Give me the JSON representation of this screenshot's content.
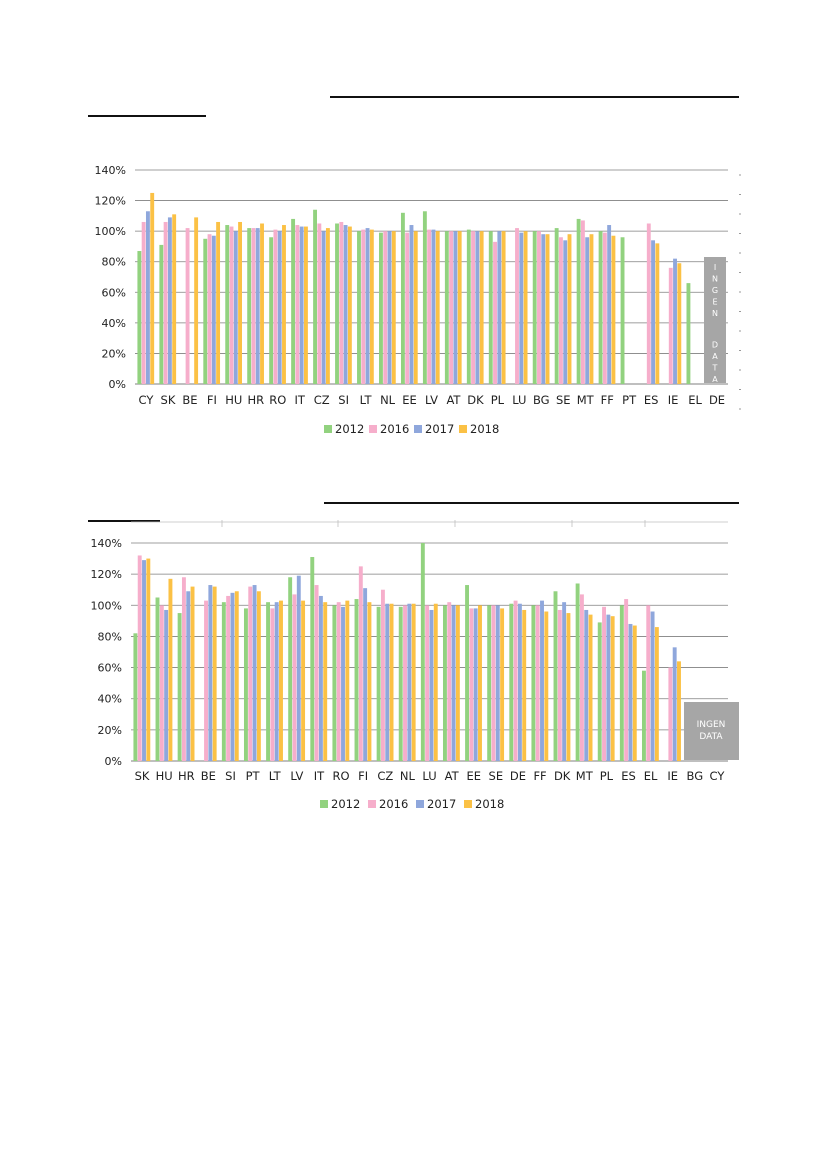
{
  "colors": {
    "2012": "#92d27f",
    "2016": "#f6aecb",
    "2017": "#8fa7dc",
    "2018": "#fbc145",
    "grid": "#7f7f7f",
    "nodata": "#a6a6a6"
  },
  "chart_data": [
    {
      "type": "bar",
      "title": "",
      "xlabel": "",
      "ylabel": "",
      "ylim": [
        0,
        1.4
      ],
      "yticks": [
        "0%",
        "20%",
        "40%",
        "60%",
        "80%",
        "100%",
        "120%",
        "140%"
      ],
      "grid": true,
      "legend_position": "bottom",
      "categories": [
        "CY",
        "SK",
        "BE",
        "FI",
        "HU",
        "HR",
        "RO",
        "IT",
        "CZ",
        "SI",
        "LT",
        "NL",
        "EE",
        "LV",
        "AT",
        "DK",
        "PL",
        "LU",
        "BG",
        "SE",
        "MT",
        "FF",
        "PT",
        "ES",
        "IE",
        "EL",
        "DE"
      ],
      "series": [
        {
          "name": "2012",
          "values": [
            0.87,
            0.91,
            null,
            0.95,
            1.04,
            1.02,
            0.96,
            1.08,
            1.14,
            1.05,
            1.0,
            0.99,
            1.12,
            1.13,
            1.0,
            1.01,
            1.0,
            null,
            1.0,
            1.02,
            1.08,
            1.0,
            0.96,
            null,
            null,
            0.66,
            null
          ]
        },
        {
          "name": "2016",
          "values": [
            1.06,
            1.06,
            1.02,
            0.98,
            1.03,
            1.02,
            1.01,
            1.04,
            1.05,
            1.06,
            1.01,
            1.0,
            0.99,
            1.01,
            1.0,
            1.0,
            0.93,
            1.02,
            1.0,
            0.96,
            1.07,
            0.99,
            null,
            1.05,
            0.76,
            null,
            null
          ]
        },
        {
          "name": "2017",
          "values": [
            1.13,
            1.09,
            null,
            0.97,
            1.0,
            1.02,
            1.0,
            1.03,
            1.0,
            1.04,
            1.02,
            1.0,
            1.04,
            1.01,
            1.0,
            1.0,
            1.0,
            0.99,
            0.98,
            0.94,
            0.96,
            1.04,
            null,
            0.94,
            0.82,
            null,
            null
          ]
        },
        {
          "name": "2018",
          "values": [
            1.25,
            1.11,
            1.09,
            1.06,
            1.06,
            1.05,
            1.04,
            1.03,
            1.02,
            1.03,
            1.01,
            1.0,
            1.0,
            1.0,
            1.0,
            1.0,
            1.0,
            1.0,
            0.98,
            0.98,
            0.98,
            0.97,
            null,
            0.92,
            0.79,
            null,
            null
          ]
        }
      ],
      "nodata_label": "INGEN DATA"
    },
    {
      "type": "bar",
      "title": "",
      "xlabel": "",
      "ylabel": "",
      "ylim": [
        0,
        1.4
      ],
      "yticks": [
        "0%",
        "20%",
        "40%",
        "60%",
        "80%",
        "100%",
        "120%",
        "140%"
      ],
      "grid": true,
      "legend_position": "bottom",
      "categories": [
        "SK",
        "HU",
        "HR",
        "BE",
        "SI",
        "PT",
        "LT",
        "LV",
        "IT",
        "RO",
        "FI",
        "CZ",
        "NL",
        "LU",
        "AT",
        "EE",
        "SE",
        "DE",
        "FF",
        "DK",
        "MT",
        "PL",
        "ES",
        "EL",
        "IE",
        "BG",
        "CY"
      ],
      "series": [
        {
          "name": "2012",
          "values": [
            0.82,
            1.05,
            0.95,
            null,
            1.02,
            0.98,
            1.02,
            1.18,
            1.31,
            1.0,
            1.04,
            0.99,
            0.99,
            1.4,
            1.0,
            1.13,
            1.0,
            1.01,
            1.0,
            1.09,
            1.14,
            0.89,
            1.0,
            0.58,
            null,
            null,
            null
          ]
        },
        {
          "name": "2016",
          "values": [
            1.32,
            1.0,
            1.18,
            1.03,
            1.06,
            1.12,
            0.98,
            1.07,
            1.13,
            1.02,
            1.25,
            1.1,
            1.0,
            1.0,
            1.02,
            0.98,
            1.0,
            1.03,
            1.0,
            0.97,
            1.07,
            0.99,
            1.04,
            1.0,
            0.6,
            null,
            null
          ]
        },
        {
          "name": "2017",
          "values": [
            1.29,
            0.97,
            1.09,
            1.13,
            1.08,
            1.13,
            1.02,
            1.19,
            1.06,
            0.99,
            1.11,
            1.01,
            1.01,
            0.97,
            1.0,
            0.98,
            1.0,
            1.01,
            1.03,
            1.02,
            0.97,
            0.94,
            0.88,
            0.96,
            0.73,
            null,
            null
          ]
        },
        {
          "name": "2018",
          "values": [
            1.3,
            1.17,
            1.12,
            1.12,
            1.09,
            1.09,
            1.03,
            1.03,
            1.02,
            1.03,
            1.02,
            1.01,
            1.01,
            1.01,
            1.0,
            1.0,
            0.98,
            0.97,
            0.96,
            0.95,
            0.94,
            0.93,
            0.87,
            0.86,
            0.64,
            null,
            null
          ]
        }
      ],
      "nodata_label_lines": [
        "INGEN",
        "DATA"
      ]
    }
  ]
}
